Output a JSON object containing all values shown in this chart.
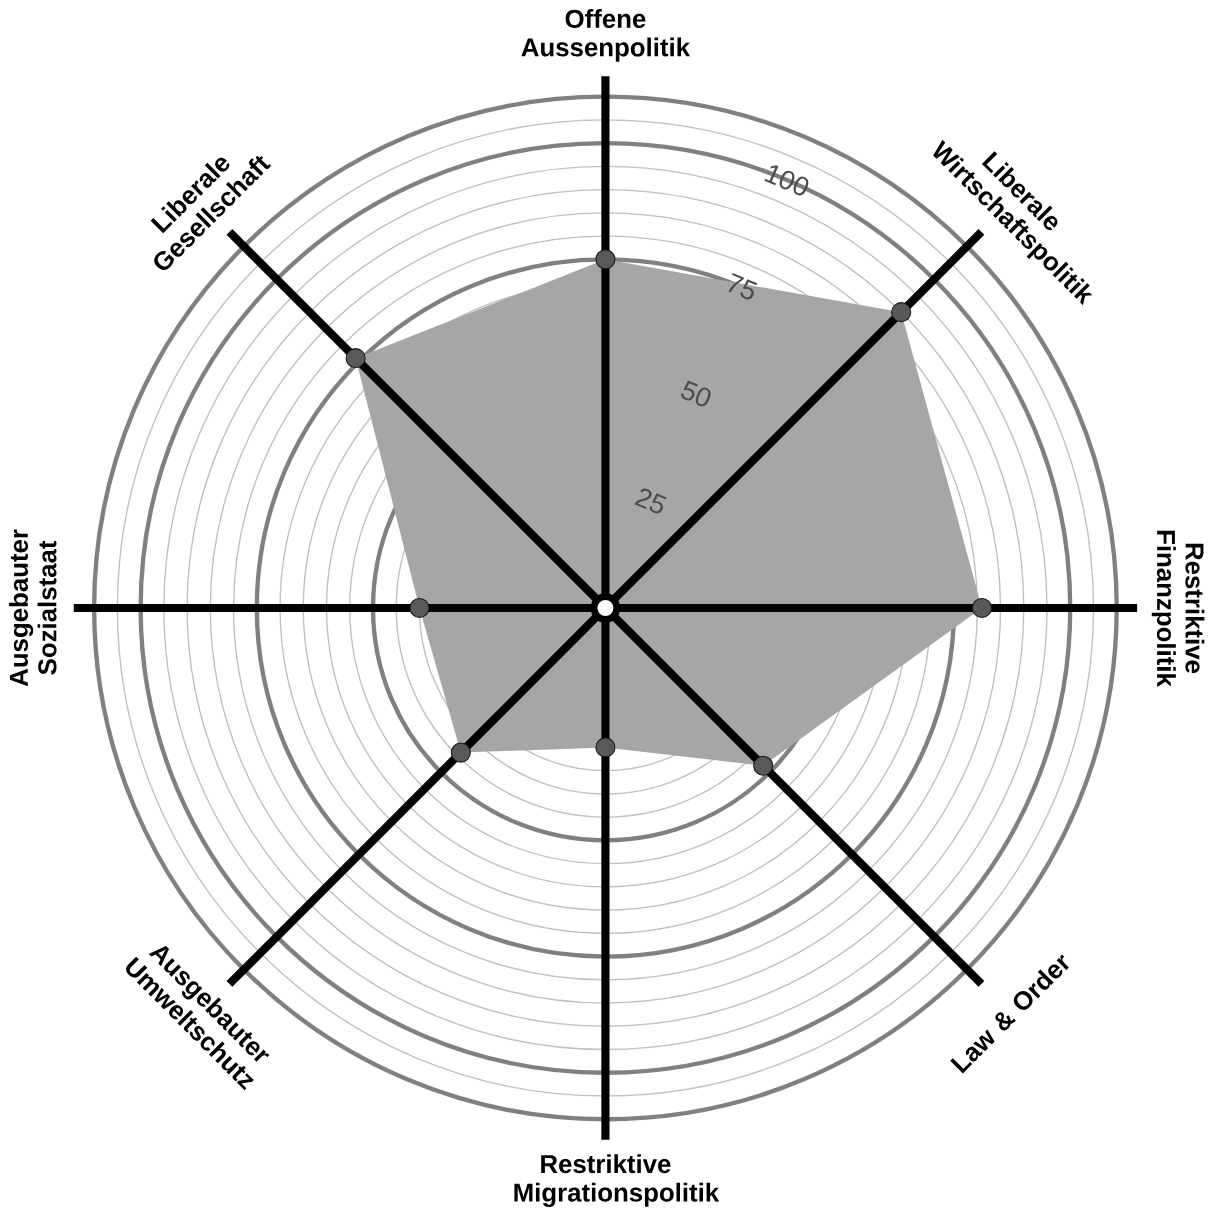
{
  "chart_data": {
    "type": "radar",
    "categories": [
      "Offene Aussenpolitik",
      "Liberale Wirtschaftspolitik",
      "Restriktive Finanzpolitik",
      "Law & Order",
      "Restriktive Migrationspolitik",
      "Ausgebauter Umweltschutz",
      "Ausgebauter Sozialstaat",
      "Liberale Gesellschaft"
    ],
    "series": [
      {
        "color": "#a6a6a6",
        "values": [
          75,
          90,
          81,
          48,
          30,
          44,
          40,
          76
        ]
      }
    ],
    "ylim": [
      0,
      110
    ],
    "yticks": [
      25,
      50,
      75,
      100
    ],
    "grid": true,
    "marker": "circle"
  }
}
